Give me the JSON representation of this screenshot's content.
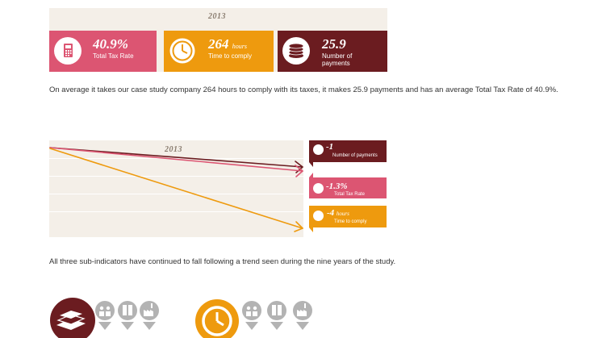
{
  "top": {
    "year": "2013",
    "tax_rate": {
      "value": "40.9%",
      "label": "Total Tax Rate",
      "color": "#dc5572",
      "icon": "calculator-icon"
    },
    "time": {
      "value": "264",
      "unit": "hours",
      "label": "Time to comply",
      "color": "#ee9a0e",
      "icon": "clock-icon"
    },
    "payments": {
      "value": "25.9",
      "label": "Number of payments",
      "color": "#6b1c20",
      "icon": "coins-stack-icon"
    }
  },
  "summary_text": "On average it takes our case study company 264 hours to comply with its taxes, it makes 25.9 payments and has an average Total Tax Rate of 40.9%.",
  "chart": {
    "year": "2013",
    "badges": [
      {
        "value": "-1",
        "label": "Number of payments",
        "color": "#6b1c20"
      },
      {
        "value": "-1.3%",
        "label": "Total Tax Rate",
        "color": "#dc5572"
      },
      {
        "value": "-4",
        "unit": "hours",
        "label": "Time to comply",
        "color": "#ee9a0e"
      }
    ]
  },
  "trend_text": "All three sub-indicators have continued to fall following a trend seen during the nine years of the study.",
  "bottom_icons": [
    "coins-stack-icon",
    "people-icon",
    "book-icon",
    "factory-icon",
    "clock-icon",
    "people-icon",
    "book-icon",
    "factory-icon"
  ]
}
